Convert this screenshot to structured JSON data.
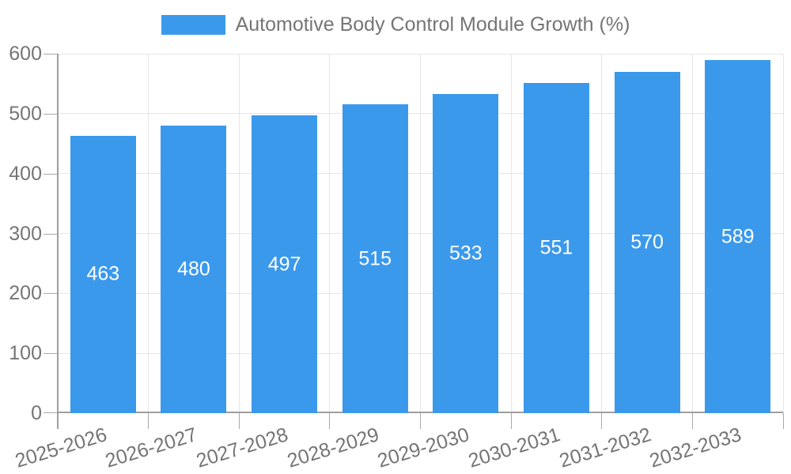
{
  "chart_data": {
    "type": "bar",
    "title": "Automotive Body Control Module Growth (%)",
    "categories": [
      "2025-2026",
      "2026-2027",
      "2027-2028",
      "2028-2029",
      "2029-2030",
      "2030-2031",
      "2031-2032",
      "2032-2033"
    ],
    "values": [
      463,
      480,
      497,
      515,
      533,
      551,
      570,
      589
    ],
    "xlabel": "",
    "ylabel": "",
    "ylim": [
      0,
      600
    ],
    "yticks": [
      0,
      100,
      200,
      300,
      400,
      500,
      600
    ],
    "grid": true,
    "legend_position": "top",
    "colors": {
      "bar": "#3b99ec",
      "bar_value_label": "#ffffff",
      "gridline": "#e6e6e6",
      "axis_line": "#9e9e9e",
      "axis_text": "#757575",
      "legend_text": "#757575"
    }
  }
}
